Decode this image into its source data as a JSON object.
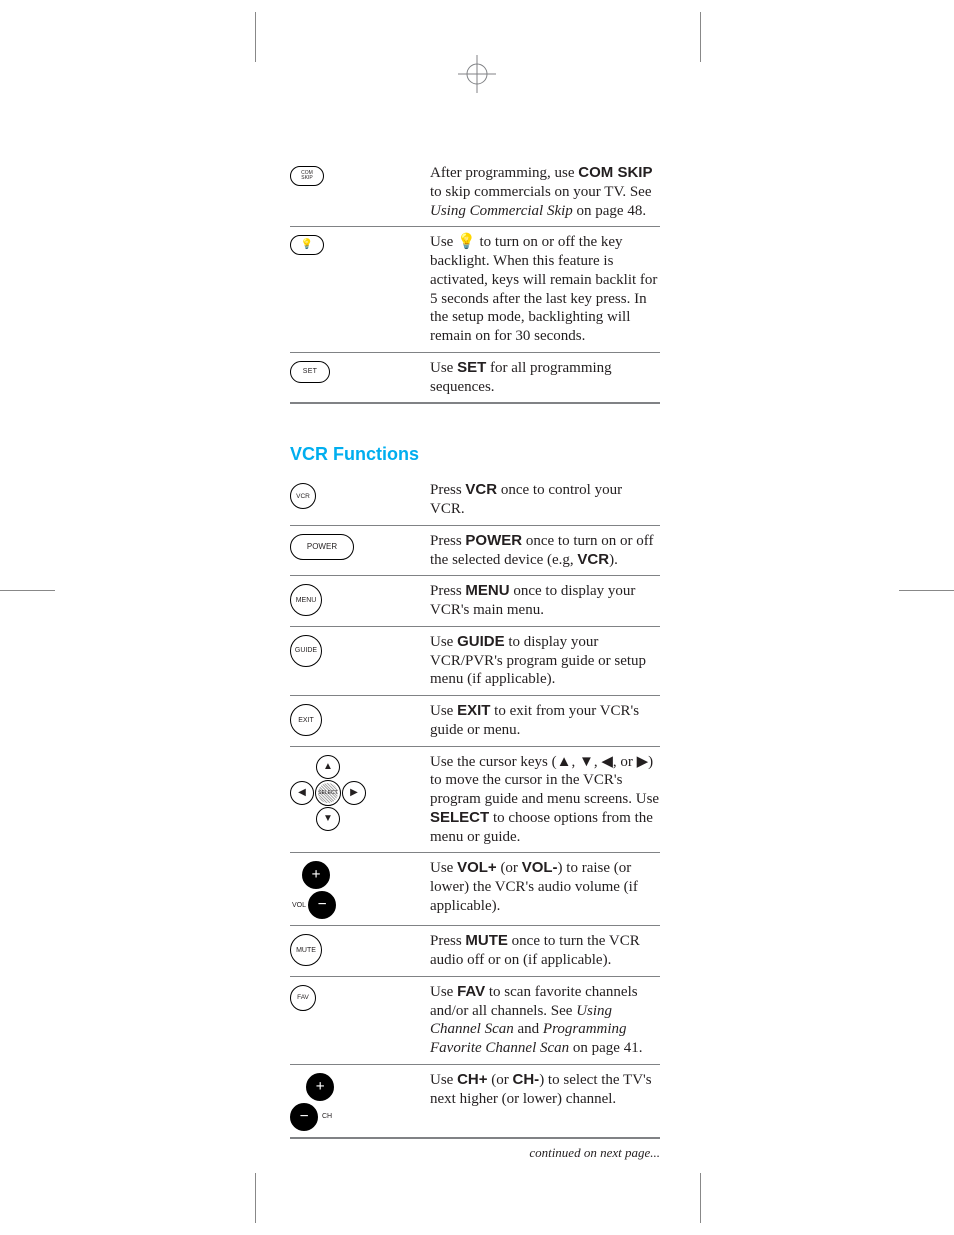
{
  "colors": {
    "text": "#231f20",
    "accent": "#00aeef",
    "rule": "#808285",
    "background": "#ffffff"
  },
  "top_section": {
    "rows": [
      {
        "icon_label": "COM\nSKIP",
        "icon_type": "oval-sm",
        "text_parts": [
          {
            "t": "After programming, use ",
            "b": false,
            "i": false
          },
          {
            "t": "COM SKIP",
            "b": true,
            "i": false
          },
          {
            "t": " to skip commercials on your TV. See ",
            "b": false,
            "i": false
          },
          {
            "t": "Using Commercial Skip",
            "b": false,
            "i": true
          },
          {
            "t": " on page 48.",
            "b": false,
            "i": false
          }
        ]
      },
      {
        "icon_label": "💡",
        "icon_type": "oval-sm-bulb",
        "text_parts": [
          {
            "t": "Use ",
            "b": false,
            "i": false
          },
          {
            "t": "💡",
            "b": false,
            "i": false
          },
          {
            "t": " to turn on or off the key backlight. When this feature is activated, keys will remain backlit for 5 seconds after the last key press. In the setup mode, backlighting will remain on for 30 seconds.",
            "b": false,
            "i": false
          }
        ]
      },
      {
        "icon_label": "SET",
        "icon_type": "oval-med",
        "text_parts": [
          {
            "t": "Use ",
            "b": false,
            "i": false
          },
          {
            "t": "SET",
            "b": true,
            "i": false
          },
          {
            "t": " for all programming sequences.",
            "b": false,
            "i": false
          }
        ]
      }
    ]
  },
  "section_header": "VCR Functions",
  "vcr_section": {
    "rows": [
      {
        "icon_label": "VCR",
        "icon_type": "round-sm",
        "text_parts": [
          {
            "t": "Press ",
            "b": false,
            "i": false
          },
          {
            "t": "VCR",
            "b": true,
            "i": false
          },
          {
            "t": " once to control your VCR.",
            "b": false,
            "i": false
          }
        ]
      },
      {
        "icon_label": "POWER",
        "icon_type": "oval-wide",
        "text_parts": [
          {
            "t": "Press ",
            "b": false,
            "i": false
          },
          {
            "t": "POWER",
            "b": true,
            "i": false
          },
          {
            "t": " once to turn on or off the selected device (e.g, ",
            "b": false,
            "i": false
          },
          {
            "t": "VCR",
            "b": true,
            "i": false
          },
          {
            "t": ").",
            "b": false,
            "i": false
          }
        ]
      },
      {
        "icon_label": "MENU",
        "icon_type": "round",
        "text_parts": [
          {
            "t": "Press ",
            "b": false,
            "i": false
          },
          {
            "t": "MENU",
            "b": true,
            "i": false
          },
          {
            "t": " once to display your VCR's main menu.",
            "b": false,
            "i": false
          }
        ]
      },
      {
        "icon_label": "GUIDE",
        "icon_type": "round",
        "text_parts": [
          {
            "t": "Use ",
            "b": false,
            "i": false
          },
          {
            "t": "GUIDE",
            "b": true,
            "i": false
          },
          {
            "t": " to display your VCR/PVR's program guide or setup menu (if applicable).",
            "b": false,
            "i": false
          }
        ]
      },
      {
        "icon_label": "EXIT",
        "icon_type": "round",
        "text_parts": [
          {
            "t": "Use ",
            "b": false,
            "i": false
          },
          {
            "t": "EXIT",
            "b": true,
            "i": false
          },
          {
            "t": " to exit from your VCR's guide or menu.",
            "b": false,
            "i": false
          }
        ]
      },
      {
        "icon_label": "SELECT",
        "icon_type": "nav-cluster",
        "text_parts": [
          {
            "t": "Use the cursor keys (▲, ▼, ◀, or ▶) to move the cursor in the VCR's program guide and menu screens. Use ",
            "b": false,
            "i": false
          },
          {
            "t": "SELECT",
            "b": true,
            "i": false
          },
          {
            "t": " to choose options from the menu or guide.",
            "b": false,
            "i": false
          }
        ]
      },
      {
        "icon_label": "VOL",
        "icon_type": "vol-rocker",
        "text_parts": [
          {
            "t": "Use ",
            "b": false,
            "i": false
          },
          {
            "t": "VOL+",
            "b": true,
            "i": false
          },
          {
            "t": " (or ",
            "b": false,
            "i": false
          },
          {
            "t": "VOL-",
            "b": true,
            "i": false
          },
          {
            "t": ") to raise (or lower) the VCR's audio volume (if applicable).",
            "b": false,
            "i": false
          }
        ]
      },
      {
        "icon_label": "MUTE",
        "icon_type": "round",
        "text_parts": [
          {
            "t": "Press ",
            "b": false,
            "i": false
          },
          {
            "t": "MUTE",
            "b": true,
            "i": false
          },
          {
            "t": " once to turn the VCR audio off or on (if applicable).",
            "b": false,
            "i": false
          }
        ]
      },
      {
        "icon_label": "FAV",
        "icon_type": "round-sm",
        "text_parts": [
          {
            "t": "Use ",
            "b": false,
            "i": false
          },
          {
            "t": "FAV",
            "b": true,
            "i": false
          },
          {
            "t": " to scan favorite channels and/or all channels. See ",
            "b": false,
            "i": false
          },
          {
            "t": "Using Channel Scan",
            "b": false,
            "i": true
          },
          {
            "t": " and ",
            "b": false,
            "i": false
          },
          {
            "t": "Program­ming Favorite Channel Scan",
            "b": false,
            "i": true
          },
          {
            "t": " on page 41.",
            "b": false,
            "i": false
          }
        ]
      },
      {
        "icon_label": "CH",
        "icon_type": "ch-rocker",
        "text_parts": [
          {
            "t": "Use ",
            "b": false,
            "i": false
          },
          {
            "t": "CH+",
            "b": true,
            "i": false
          },
          {
            "t": " (or ",
            "b": false,
            "i": false
          },
          {
            "t": "CH-",
            "b": true,
            "i": false
          },
          {
            "t": ") to select the TV's next higher (or lower) channel.",
            "b": false,
            "i": false
          }
        ]
      }
    ]
  },
  "footer": "continued on next page..."
}
